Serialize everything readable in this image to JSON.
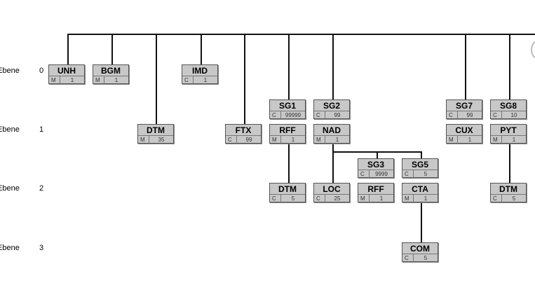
{
  "levels": [
    {
      "label": "Ebene",
      "number": "0"
    },
    {
      "label": "Ebene",
      "number": "1"
    },
    {
      "label": "Ebene",
      "number": "2"
    },
    {
      "label": "Ebene",
      "number": "3"
    }
  ],
  "segments": [
    {
      "name": "UNH",
      "status": "M",
      "repeat": "1"
    },
    {
      "name": "BGM",
      "status": "M",
      "repeat": "1"
    },
    {
      "name": "IMD",
      "status": "C",
      "repeat": "1"
    },
    {
      "name": "DTM",
      "status": "M",
      "repeat": "35"
    },
    {
      "name": "FTX",
      "status": "C",
      "repeat": "99"
    },
    {
      "name": "SG1",
      "status": "C",
      "repeat": "99999"
    },
    {
      "name": "RFF",
      "status": "M",
      "repeat": "1"
    },
    {
      "name": "DTM",
      "status": "C",
      "repeat": "5"
    },
    {
      "name": "SG2",
      "status": "C",
      "repeat": "99"
    },
    {
      "name": "NAD",
      "status": "M",
      "repeat": "1"
    },
    {
      "name": "LOC",
      "status": "C",
      "repeat": "25"
    },
    {
      "name": "SG3",
      "status": "C",
      "repeat": "9999"
    },
    {
      "name": "RFF",
      "status": "M",
      "repeat": "1"
    },
    {
      "name": "SG5",
      "status": "C",
      "repeat": "5"
    },
    {
      "name": "CTA",
      "status": "M",
      "repeat": "1"
    },
    {
      "name": "COM",
      "status": "C",
      "repeat": "5"
    },
    {
      "name": "SG7",
      "status": "C",
      "repeat": "99"
    },
    {
      "name": "CUX",
      "status": "M",
      "repeat": "1"
    },
    {
      "name": "SG8",
      "status": "C",
      "repeat": "10"
    },
    {
      "name": "PYT",
      "status": "M",
      "repeat": "1"
    },
    {
      "name": "DTM",
      "status": "C",
      "repeat": "5"
    }
  ]
}
